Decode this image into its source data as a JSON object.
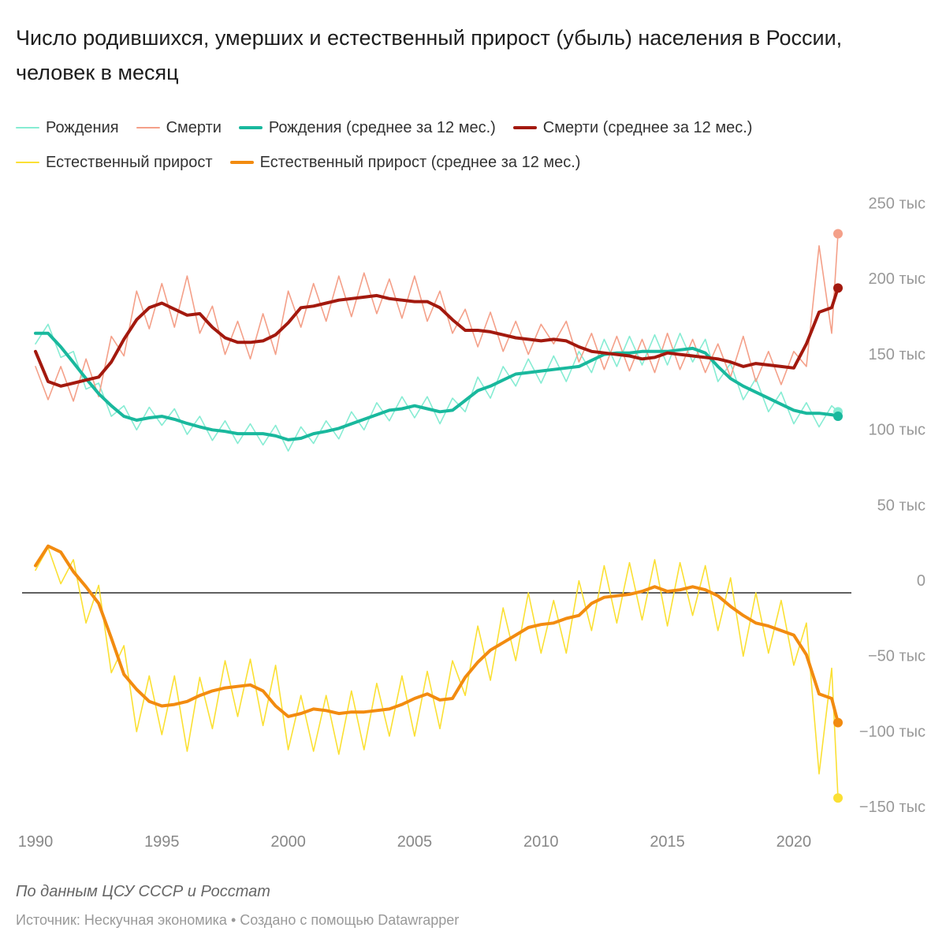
{
  "title": "Число родившихся, умерших и естественный прирост (убыль) населения в России, человек в месяц",
  "legend": [
    {
      "label": "Рождения",
      "color": "#86ecd3",
      "thick": false
    },
    {
      "label": "Смерти",
      "color": "#f4a089",
      "thick": false
    },
    {
      "label": "Рождения (среднее за 12 мес.)",
      "color": "#19b89d",
      "thick": true
    },
    {
      "label": "Смерти (среднее за 12 мес.)",
      "color": "#a3190e",
      "thick": true
    },
    {
      "label": "Естественный прирост",
      "color": "#fbe034",
      "thick": false
    },
    {
      "label": "Естественный прирост (среднее за 12 мес.)",
      "color": "#f28b10",
      "thick": true
    }
  ],
  "footer": {
    "note": "По данным ЦСУ СССР и Росстат",
    "source": "Источник: Нескучная экономика • Создано с помощью Datawrapper"
  },
  "chart_data": {
    "type": "line",
    "title": "Число родившихся, умерших и естественный прирост (убыль) населения в России, человек в месяц",
    "unit": "тыс",
    "xlim": [
      1990,
      2021.75
    ],
    "ylim": [
      -150,
      250
    ],
    "grid": false,
    "zero_line": true,
    "legend_position": "top",
    "x_ticks": [
      "1990",
      "1995",
      "2000",
      "2005",
      "2010",
      "2015",
      "2020"
    ],
    "y_ticks": [
      {
        "value": 250,
        "label": "250 тыс"
      },
      {
        "value": 200,
        "label": "200 тыс"
      },
      {
        "value": 150,
        "label": "150 тыс"
      },
      {
        "value": 100,
        "label": "100 тыс"
      },
      {
        "value": 50,
        "label": "50 тыс"
      },
      {
        "value": 0,
        "label": "0"
      },
      {
        "value": -50,
        "label": "−50 тыс"
      },
      {
        "value": -100,
        "label": "−100 тыс"
      },
      {
        "value": -150,
        "label": "−150 тыс"
      }
    ],
    "x": [
      1990,
      1990.5,
      1991,
      1991.5,
      1992,
      1992.5,
      1993,
      1993.5,
      1994,
      1994.5,
      1995,
      1995.5,
      1996,
      1996.5,
      1997,
      1997.5,
      1998,
      1998.5,
      1999,
      1999.5,
      2000,
      2000.5,
      2001,
      2001.5,
      2002,
      2002.5,
      2003,
      2003.5,
      2004,
      2004.5,
      2005,
      2005.5,
      2006,
      2006.5,
      2007,
      2007.5,
      2008,
      2008.5,
      2009,
      2009.5,
      2010,
      2010.5,
      2011,
      2011.5,
      2012,
      2012.5,
      2013,
      2013.5,
      2014,
      2014.5,
      2015,
      2015.5,
      2016,
      2016.5,
      2017,
      2017.5,
      2018,
      2018.5,
      2019,
      2019.5,
      2020,
      2020.5,
      2021,
      2021.5,
      2021.75
    ],
    "series": [
      {
        "name": "Рождения",
        "color": "#86ecd3",
        "width": 1.6,
        "dot": true,
        "values": [
          165,
          178,
          156,
          160,
          135,
          139,
          117,
          124,
          108,
          123,
          111,
          122,
          105,
          117,
          101,
          114,
          99,
          112,
          98,
          111,
          94,
          110,
          99,
          114,
          102,
          120,
          108,
          126,
          114,
          130,
          116,
          130,
          112,
          129,
          120,
          143,
          129,
          150,
          137,
          155,
          139,
          157,
          140,
          160,
          146,
          168,
          150,
          170,
          151,
          171,
          151,
          172,
          153,
          168,
          140,
          152,
          128,
          142,
          120,
          133,
          112,
          126,
          110,
          124,
          120
        ]
      },
      {
        "name": "Смерти",
        "color": "#f4a089",
        "width": 1.6,
        "dot": true,
        "values": [
          150,
          128,
          150,
          127,
          155,
          130,
          170,
          157,
          200,
          175,
          205,
          176,
          210,
          172,
          190,
          158,
          180,
          155,
          185,
          158,
          200,
          176,
          205,
          180,
          210,
          183,
          212,
          185,
          208,
          182,
          210,
          180,
          200,
          172,
          188,
          163,
          186,
          160,
          180,
          158,
          178,
          165,
          180,
          153,
          172,
          148,
          170,
          147,
          168,
          146,
          172,
          148,
          168,
          146,
          165,
          143,
          170,
          140,
          160,
          138,
          160,
          150,
          230,
          172,
          238
        ]
      },
      {
        "name": "Естественный прирост",
        "color": "#fbe034",
        "width": 1.6,
        "dot": true,
        "values": [
          15,
          30,
          6,
          22,
          -20,
          5,
          -53,
          -35,
          -92,
          -55,
          -94,
          -55,
          -105,
          -56,
          -90,
          -45,
          -82,
          -44,
          -88,
          -48,
          -104,
          -68,
          -105,
          -68,
          -107,
          -65,
          -104,
          -60,
          -95,
          -55,
          -95,
          -52,
          -90,
          -45,
          -68,
          -22,
          -58,
          -10,
          -45,
          0,
          -40,
          -5,
          -40,
          8,
          -25,
          18,
          -20,
          20,
          -18,
          22,
          -22,
          20,
          -15,
          18,
          -25,
          10,
          -42,
          0,
          -40,
          -5,
          -48,
          -20,
          -120,
          -50,
          -136
        ]
      },
      {
        "name": "Рождения (среднее за 12 мес.)",
        "color": "#19b89d",
        "width": 4,
        "dot": true,
        "values": [
          172,
          172,
          163,
          152.6,
          142,
          132,
          124,
          117,
          114.4,
          116,
          117,
          115,
          112.3,
          110,
          108,
          107,
          105.5,
          105.5,
          105.5,
          104,
          101.4,
          102.4,
          105.5,
          107,
          109,
          112,
          115,
          118,
          121,
          122,
          124,
          122,
          120,
          121,
          127.5,
          134,
          137,
          141,
          145,
          146,
          147,
          148,
          149,
          150,
          154,
          158,
          159,
          159,
          160,
          160,
          160,
          161,
          162,
          159,
          150,
          142,
          137,
          133,
          129,
          125,
          121,
          119,
          119,
          118,
          117
        ]
      },
      {
        "name": "Смерти (среднее за 12 мес.)",
        "color": "#a3190e",
        "width": 4,
        "dot": true,
        "values": [
          160,
          140,
          137,
          139,
          141,
          143,
          153,
          168,
          181,
          189,
          192,
          188,
          184,
          185,
          176,
          169,
          166,
          166,
          167,
          171,
          179,
          189,
          190,
          192,
          194,
          195,
          196,
          197,
          195,
          194,
          193,
          193,
          189,
          181,
          174,
          174,
          173,
          171,
          169,
          168,
          167,
          168,
          167,
          163,
          160,
          159,
          158,
          157,
          155,
          156,
          159,
          158,
          157,
          156,
          155,
          153,
          150,
          152,
          151,
          150,
          149,
          165,
          186,
          189,
          202
        ]
      },
      {
        "name": "Естественный прирост (среднее за 12 мес.)",
        "color": "#f28b10",
        "width": 4,
        "dot": true,
        "values": [
          18,
          31,
          27,
          14,
          4,
          -7,
          -30,
          -54,
          -64,
          -72,
          -75,
          -74,
          -72,
          -68,
          -65,
          -63,
          -62,
          -61,
          -65,
          -75,
          -82,
          -80,
          -77,
          -78,
          -80,
          -79,
          -79,
          -78,
          -77,
          -74,
          -70,
          -67,
          -71,
          -70,
          -56,
          -46,
          -38,
          -33,
          -28,
          -23,
          -21,
          -20,
          -17,
          -15,
          -7,
          -3,
          -2,
          -1,
          1,
          4,
          1,
          2,
          4,
          2,
          -2,
          -9,
          -15,
          -20,
          -22,
          -25,
          -28,
          -41,
          -67,
          -70,
          -86
        ]
      }
    ]
  }
}
